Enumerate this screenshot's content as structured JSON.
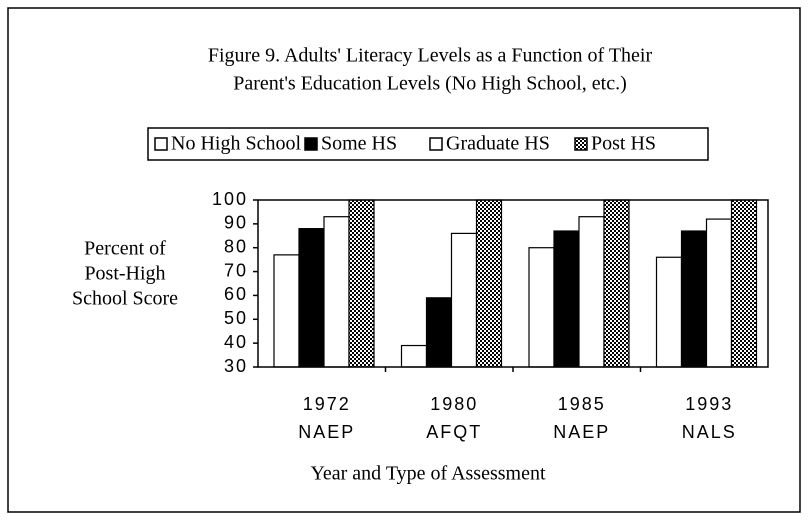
{
  "chart_data": {
    "type": "bar",
    "title": [
      "Figure 9. Adults' Literacy Levels as a Function of Their",
      "Parent's Education Levels (No High School, etc.)"
    ],
    "categories": [
      [
        "1972",
        "NAEP"
      ],
      [
        "1980",
        "AFQT"
      ],
      [
        "1985",
        "NAEP"
      ],
      [
        "1993",
        "NALS"
      ]
    ],
    "series": [
      {
        "name": "No High School",
        "color": "#ffffff",
        "values": [
          77,
          39,
          80,
          76
        ]
      },
      {
        "name": "Some HS",
        "color": "#000000",
        "values": [
          88,
          59,
          87,
          87
        ]
      },
      {
        "name": "Graduate HS",
        "color": "#ffffff",
        "values": [
          93,
          86,
          93,
          92
        ]
      },
      {
        "name": "Post HS",
        "color": "#b0b0b0",
        "pattern": "dots",
        "values": [
          100,
          100,
          100,
          100
        ]
      }
    ],
    "ylabel": [
      "Percent of",
      "Post-High",
      "School Score"
    ],
    "xlabel": "Year and Type of Assessment",
    "ylim": [
      30,
      100
    ],
    "yticks": [
      30,
      40,
      50,
      60,
      70,
      80,
      90,
      100
    ]
  }
}
